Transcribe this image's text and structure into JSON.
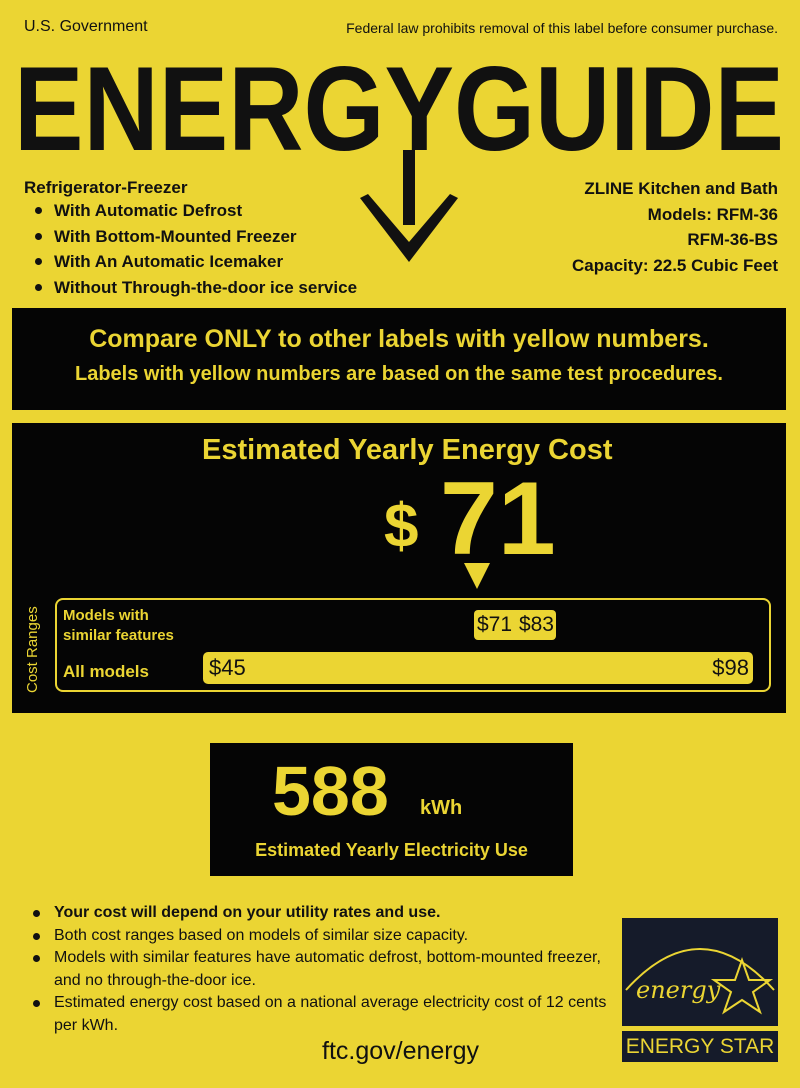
{
  "header": {
    "gov": "U.S. Government",
    "law": "Federal law prohibits removal of this label before consumer purchase.",
    "title": "ENERGYGUIDE"
  },
  "product": {
    "type": "Refrigerator-Freezer",
    "features": [
      "With Automatic Defrost",
      "With Bottom-Mounted Freezer",
      "With An Automatic Icemaker",
      "Without Through-the-door ice service"
    ]
  },
  "maker": {
    "brand": "ZLINE Kitchen and Bath",
    "models": "Models: RFM-36",
    "model2": "RFM-36-BS",
    "capacity": "Capacity: 22.5 Cubic Feet"
  },
  "compare": {
    "line1": "Compare ONLY to other labels with yellow numbers.",
    "line2": "Labels with yellow numbers are based on the same test procedures."
  },
  "cost": {
    "heading": "Estimated Yearly Energy Cost",
    "dollar": "$",
    "value": "71",
    "ranges_label": "Cost Ranges",
    "similar_label_1": "Models with",
    "similar_label_2": "similar features",
    "similar_min": "$71",
    "similar_max": "$83",
    "all_label": "All models",
    "all_min": "$45",
    "all_max": "$98"
  },
  "electricity": {
    "value": "588",
    "unit": "kWh",
    "label": "Estimated Yearly Electricity Use"
  },
  "notes": [
    "Your cost will depend on your utility rates and use.",
    "Both cost ranges based on models of similar size capacity.",
    "Models with similar features have automatic defrost, bottom-mounted freezer, and no through-the-door ice.",
    "Estimated energy cost based on a national average electricity cost of 12 cents per kWh."
  ],
  "footer": {
    "url": "ftc.gov/energy"
  },
  "energy_star": {
    "script": "energy",
    "label": "ENERGY STAR"
  },
  "colors": {
    "yellow": "#ebd533",
    "black": "#050505"
  }
}
